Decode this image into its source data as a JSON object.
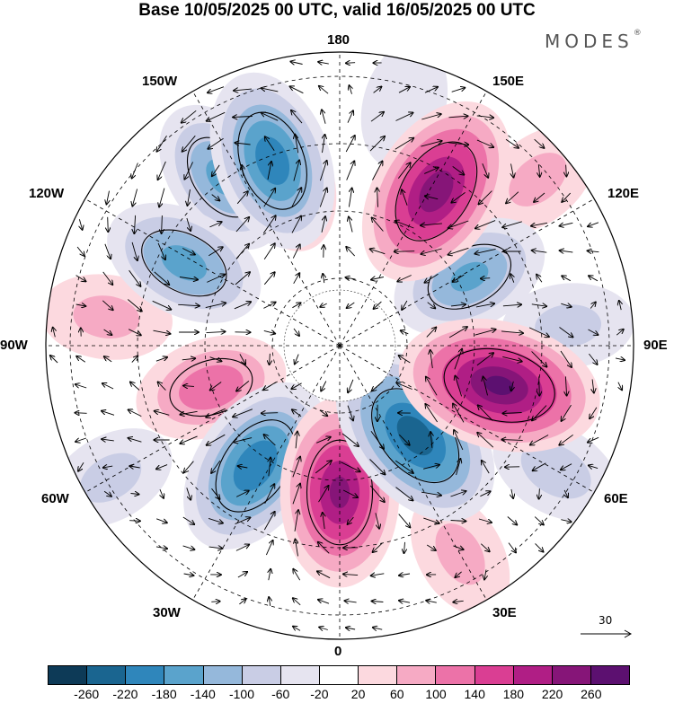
{
  "title": "Base 10/05/2025 00 UTC, valid 16/05/2025 00 UTC",
  "brand": "MODES",
  "brand_mark": "®",
  "longitude_labels": {
    "l180": "180",
    "l150E": "150E",
    "l120E": "120E",
    "l90E": "90E",
    "l60E": "60E",
    "l30E": "30E",
    "l0": "0",
    "l30W": "30W",
    "l60W": "60W",
    "l90W": "90W",
    "l120W": "120W",
    "l150W": "150W"
  },
  "reference_vector": {
    "label": "30"
  },
  "colorbar": {
    "colors": [
      "#0d3a57",
      "#1a6590",
      "#2f86bb",
      "#5aa3cc",
      "#95b8db",
      "#c9cde5",
      "#e6e4f0",
      "#ffffff",
      "#fcd9df",
      "#f6aac4",
      "#ec72a8",
      "#da3e93",
      "#b01e85",
      "#861578",
      "#5c1070"
    ],
    "ticks": [
      "-260",
      "-220",
      "-180",
      "-140",
      "-100",
      "-60",
      "-20",
      "20",
      "60",
      "100",
      "140",
      "180",
      "220",
      "260"
    ]
  },
  "map": {
    "projection": "north-polar-stereographic",
    "field": "geopotential height anomaly with wind vectors",
    "anomaly_centers": [
      {
        "lon_deg_cw_from_bottom": 200,
        "colat": 0.67,
        "value": -200
      },
      {
        "lon_deg_cw_from_bottom": 148,
        "colat": 0.62,
        "value": 240
      },
      {
        "lon_deg_cw_from_bottom": 118,
        "colat": 0.5,
        "value": -140
      },
      {
        "lon_deg_cw_from_bottom": 76,
        "colat": 0.56,
        "value": 260
      },
      {
        "lon_deg_cw_from_bottom": 40,
        "colat": 0.4,
        "value": -240
      },
      {
        "lon_deg_cw_from_bottom": 0,
        "colat": 0.5,
        "value": 220
      },
      {
        "lon_deg_cw_from_bottom": -35,
        "colat": 0.5,
        "value": -210
      },
      {
        "lon_deg_cw_from_bottom": -72,
        "colat": 0.46,
        "value": 120
      },
      {
        "lon_deg_cw_from_bottom": -118,
        "colat": 0.6,
        "value": -150
      },
      {
        "lon_deg_cw_from_bottom": -145,
        "colat": 0.7,
        "value": -140
      },
      {
        "lon_deg_cw_from_bottom": -162,
        "colat": 0.6,
        "value": 110
      },
      {
        "lon_deg_cw_from_bottom": -97,
        "colat": 0.8,
        "value": 60
      },
      {
        "lon_deg_cw_from_bottom": -60,
        "colat": 0.9,
        "value": -60
      },
      {
        "lon_deg_cw_from_bottom": 30,
        "colat": 0.82,
        "value": 60
      },
      {
        "lon_deg_cw_from_bottom": 60,
        "colat": 0.85,
        "value": -70
      },
      {
        "lon_deg_cw_from_bottom": 95,
        "colat": 0.78,
        "value": -60
      },
      {
        "lon_deg_cw_from_bottom": 130,
        "colat": 0.88,
        "value": 60
      },
      {
        "lon_deg_cw_from_bottom": 165,
        "colat": 0.85,
        "value": -50
      }
    ]
  }
}
